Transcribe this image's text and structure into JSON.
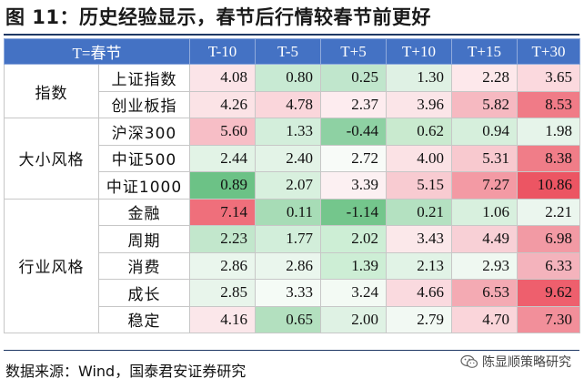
{
  "title": "图 11：历史经验显示，春节后行情较春节前更好",
  "header": {
    "corner": "T=春节",
    "columns": [
      "T-10",
      "T-5",
      "T+5",
      "T+10",
      "T+15",
      "T+30"
    ]
  },
  "groups": [
    {
      "label": "指数",
      "rows": [
        {
          "name": "上证指数",
          "values": [
            "4.08",
            "0.80",
            "0.25",
            "1.30",
            "2.28",
            "3.65"
          ],
          "colors": [
            "#fbe4e8",
            "#c8ead3",
            "#c0e6cc",
            "#dff1e4",
            "#fde8eb",
            "#fbd9de"
          ]
        },
        {
          "name": "创业板指",
          "values": [
            "4.26",
            "4.78",
            "2.37",
            "3.96",
            "5.82",
            "8.53"
          ],
          "colors": [
            "#fbe3e6",
            "#fad6db",
            "#fdecef",
            "#fbe5e8",
            "#f6b9c1",
            "#f07b87"
          ]
        }
      ]
    },
    {
      "label": "大小风格",
      "rows": [
        {
          "name": "沪深300",
          "values": [
            "5.60",
            "1.33",
            "-0.44",
            "0.62",
            "0.94",
            "1.98"
          ],
          "colors": [
            "#f7bec6",
            "#d3eedb",
            "#8ed1a3",
            "#c9eacf",
            "#d6efdc",
            "#e6f4ea"
          ]
        },
        {
          "name": "中证500",
          "values": [
            "2.44",
            "2.40",
            "2.72",
            "4.00",
            "5.31",
            "8.38"
          ],
          "colors": [
            "#e2f3e6",
            "#e3f3e7",
            "#f8fbf8",
            "#fbe2e5",
            "#f8c9cf",
            "#f07d88"
          ]
        },
        {
          "name": "中证1000",
          "values": [
            "0.89",
            "2.07",
            "3.39",
            "5.15",
            "7.27",
            "10.86"
          ],
          "colors": [
            "#6cc286",
            "#d8f0de",
            "#fcf0f2",
            "#f8cbd1",
            "#f39aa4",
            "#ec5563"
          ]
        }
      ]
    },
    {
      "label": "行业风格",
      "rows": [
        {
          "name": "金融",
          "values": [
            "7.14",
            "0.11",
            "-1.14",
            "0.21",
            "1.06",
            "2.21"
          ],
          "colors": [
            "#ef6f7b",
            "#a7dcb6",
            "#74c68c",
            "#b4e1c1",
            "#d8f0de",
            "#ebf6ee"
          ]
        },
        {
          "name": "周期",
          "values": [
            "2.23",
            "1.77",
            "2.02",
            "3.43",
            "4.49",
            "6.98"
          ],
          "colors": [
            "#c2e7cc",
            "#d2eeda",
            "#cdeed5",
            "#fbe8ea",
            "#f8d0d6",
            "#f29aa4"
          ]
        },
        {
          "name": "消费",
          "values": [
            "2.86",
            "2.86",
            "1.39",
            "2.13",
            "2.93",
            "6.33"
          ],
          "colors": [
            "#eaf6ed",
            "#eaf6ed",
            "#cdeed5",
            "#e1f3e6",
            "#eff8f1",
            "#f4b3bc"
          ]
        },
        {
          "name": "成长",
          "values": [
            "2.85",
            "3.33",
            "3.24",
            "4.66",
            "6.53",
            "9.62"
          ],
          "colors": [
            "#e8f5eb",
            "#f5fbf6",
            "#f3faf4",
            "#fadadf",
            "#f4aab3",
            "#ee5f6d"
          ]
        },
        {
          "name": "稳定",
          "values": [
            "4.16",
            "0.65",
            "2.00",
            "2.79",
            "4.70",
            "7.30"
          ],
          "colors": [
            "#fbe7ea",
            "#b3e0bf",
            "#dff2e4",
            "#f2f9f3",
            "#fad5da",
            "#f28f9a"
          ]
        }
      ]
    }
  ],
  "source": "数据来源：Wind，国泰君安证券研究",
  "watermark": {
    "icon": "wechat-icon",
    "text": "陈显顺策略研究"
  }
}
